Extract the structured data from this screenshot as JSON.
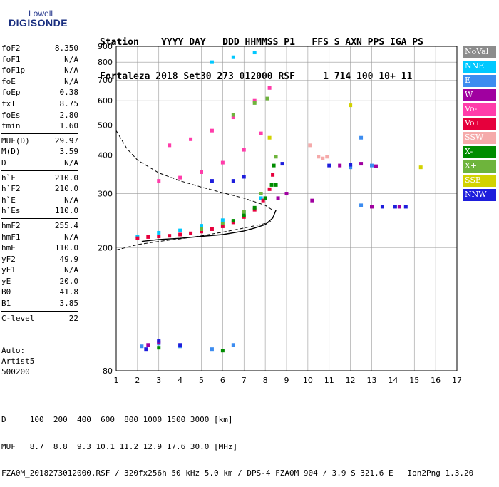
{
  "logo": {
    "line1": "Lowell",
    "line2": "DIGISONDE"
  },
  "header": {
    "labels_line": "Station    YYYY DAY   DDD HHMMSS P1   FFS S AXN PPS IGA PS",
    "values_line": "Fortaleza 2018 Set30 273 012000 RSF     1 714 100 10+ 11"
  },
  "params": [
    [
      [
        "foF2",
        "8.350"
      ],
      [
        "foF1",
        "N/A"
      ],
      [
        "foF1p",
        "N/A"
      ],
      [
        "foE",
        "N/A"
      ],
      [
        "foEp",
        "0.38"
      ],
      [
        "fxI",
        "8.75"
      ],
      [
        "foEs",
        "2.80"
      ],
      [
        "fmin",
        "1.60"
      ]
    ],
    [
      [
        "MUF(D)",
        "29.97"
      ],
      [
        "M(D)",
        "3.59"
      ],
      [
        "D",
        "N/A"
      ]
    ],
    [
      [
        "h`F",
        "210.0"
      ],
      [
        "h`F2",
        "210.0"
      ],
      [
        "h`E",
        "N/A"
      ],
      [
        "h`Es",
        "110.0"
      ]
    ],
    [
      [
        "hmF2",
        "255.4"
      ],
      [
        "hmF1",
        "N/A"
      ],
      [
        "hmE",
        "110.0"
      ],
      [
        "yF2",
        "49.9"
      ],
      [
        "yF1",
        "N/A"
      ],
      [
        "yE",
        "20.0"
      ],
      [
        "B0",
        "41.8"
      ],
      [
        "B1",
        "3.85"
      ]
    ],
    [
      [
        "C-level",
        "22"
      ]
    ]
  ],
  "auto": [
    "Auto:",
    "Artist5",
    "500200"
  ],
  "footer": [
    "D     100  200  400  600  800 1000 1500 3000 [km]",
    "MUF   8.7  8.8  9.3 10.1 11.2 12.9 17.6 30.0 [MHz]",
    "FZA0M_2018273012000.RSF / 320fx256h 50 kHz 5.0 km / DPS-4 FZA0M 904 / 3.9 S 321.6 E   Ion2Png 1.3.20"
  ],
  "legend": [
    {
      "label": "NoVal",
      "color": "#8c8c8c"
    },
    {
      "label": "NNE",
      "color": "#00c8ff"
    },
    {
      "label": "E",
      "color": "#3c8cf0"
    },
    {
      "label": "W",
      "color": "#a000a0"
    },
    {
      "label": "Vo-",
      "color": "#ff3caa"
    },
    {
      "label": "Vo+",
      "color": "#e6003c"
    },
    {
      "label": "SSW",
      "color": "#f5aaaa"
    },
    {
      "label": "X-",
      "color": "#008c00"
    },
    {
      "label": "X+",
      "color": "#6eb43c"
    },
    {
      "label": "SSE",
      "color": "#d2d200"
    },
    {
      "label": "NNW",
      "color": "#1e1edc"
    }
  ],
  "chart_data": {
    "type": "scatter",
    "xlim": [
      1,
      17
    ],
    "ylim": [
      80,
      900
    ],
    "x_ticks": [
      1,
      2,
      3,
      4,
      5,
      6,
      7,
      8,
      9,
      10,
      11,
      12,
      13,
      14,
      15,
      16,
      17
    ],
    "y_ticks": [
      80,
      200,
      300,
      400,
      500,
      600,
      700,
      800,
      900
    ],
    "y_scale": "log",
    "grid": true,
    "series": [
      {
        "name": "NNE",
        "color": "#00c8ff",
        "points": [
          [
            2.0,
            218
          ],
          [
            3.0,
            224
          ],
          [
            4.0,
            228
          ],
          [
            5.0,
            236
          ],
          [
            6.0,
            246
          ],
          [
            7.0,
            262
          ],
          [
            7.8,
            290
          ],
          [
            5.5,
            800
          ],
          [
            6.5,
            830
          ],
          [
            7.5,
            860
          ]
        ]
      },
      {
        "name": "E",
        "color": "#3c8cf0",
        "points": [
          [
            2.2,
            96
          ],
          [
            3.0,
            98
          ],
          [
            4.0,
            96
          ],
          [
            5.5,
            94
          ],
          [
            6.5,
            97
          ],
          [
            12.0,
            365
          ],
          [
            12.5,
            455
          ],
          [
            13.0,
            370
          ],
          [
            12.5,
            275
          ]
        ]
      },
      {
        "name": "W",
        "color": "#a000a0",
        "points": [
          [
            2.5,
            97
          ],
          [
            3.0,
            99
          ],
          [
            8.6,
            290
          ],
          [
            9.0,
            300
          ],
          [
            10.2,
            285
          ],
          [
            11.5,
            370
          ],
          [
            12.5,
            375
          ],
          [
            13.2,
            368
          ],
          [
            13.0,
            272
          ],
          [
            14.3,
            272
          ]
        ]
      },
      {
        "name": "Vo-",
        "color": "#ff3caa",
        "points": [
          [
            3.0,
            330
          ],
          [
            4.0,
            338
          ],
          [
            5.0,
            352
          ],
          [
            6.0,
            378
          ],
          [
            7.0,
            416
          ],
          [
            7.8,
            470
          ],
          [
            3.5,
            430
          ],
          [
            4.5,
            450
          ],
          [
            5.5,
            480
          ],
          [
            6.5,
            530
          ],
          [
            7.5,
            600
          ],
          [
            8.2,
            660
          ]
        ]
      },
      {
        "name": "Vo+",
        "color": "#e6003c",
        "points": [
          [
            2.0,
            215
          ],
          [
            2.5,
            217
          ],
          [
            3.0,
            218
          ],
          [
            3.5,
            219
          ],
          [
            4.0,
            221
          ],
          [
            4.5,
            223
          ],
          [
            5.0,
            226
          ],
          [
            5.5,
            230
          ],
          [
            6.0,
            235
          ],
          [
            6.5,
            242
          ],
          [
            7.0,
            252
          ],
          [
            7.5,
            266
          ],
          [
            7.9,
            285
          ],
          [
            8.2,
            310
          ],
          [
            8.35,
            345
          ]
        ]
      },
      {
        "name": "SSW",
        "color": "#f5aaaa",
        "points": [
          [
            10.1,
            430
          ],
          [
            10.5,
            395
          ],
          [
            10.9,
            395
          ],
          [
            10.7,
            390
          ]
        ]
      },
      {
        "name": "X-",
        "color": "#008c00",
        "points": [
          [
            6.5,
            245
          ],
          [
            7.0,
            255
          ],
          [
            7.5,
            270
          ],
          [
            8.0,
            290
          ],
          [
            8.5,
            320
          ],
          [
            8.3,
            320
          ],
          [
            8.4,
            370
          ],
          [
            3.0,
            95
          ],
          [
            6.0,
            93
          ]
        ]
      },
      {
        "name": "X+",
        "color": "#6eb43c",
        "points": [
          [
            5.0,
            230
          ],
          [
            6.0,
            240
          ],
          [
            7.0,
            262
          ],
          [
            7.8,
            300
          ],
          [
            8.5,
            395
          ],
          [
            6.5,
            540
          ],
          [
            7.5,
            590
          ],
          [
            8.1,
            610
          ]
        ]
      },
      {
        "name": "SSE",
        "color": "#d2d200",
        "points": [
          [
            8.2,
            455
          ],
          [
            15.3,
            365
          ],
          [
            12.0,
            580
          ]
        ]
      },
      {
        "name": "NNW",
        "color": "#1e1edc",
        "points": [
          [
            2.4,
            94
          ],
          [
            3.0,
            100
          ],
          [
            4.0,
            97
          ],
          [
            5.5,
            330
          ],
          [
            6.5,
            330
          ],
          [
            7.0,
            340
          ],
          [
            8.8,
            375
          ],
          [
            11.0,
            370
          ],
          [
            12.0,
            372
          ],
          [
            14.1,
            272
          ],
          [
            14.6,
            272
          ],
          [
            13.5,
            272
          ]
        ]
      }
    ],
    "curves": [
      {
        "name": "",
        "style": "solid",
        "points": [
          [
            2.2,
            210
          ],
          [
            3.0,
            213
          ],
          [
            4.0,
            215
          ],
          [
            5.0,
            218
          ],
          [
            6.0,
            221
          ],
          [
            7.0,
            227
          ],
          [
            7.5,
            232
          ],
          [
            8.0,
            238
          ],
          [
            8.35,
            250
          ],
          [
            8.5,
            265
          ]
        ]
      },
      {
        "name": "",
        "style": "dashed",
        "points": [
          [
            1.0,
            197
          ],
          [
            2.0,
            205
          ],
          [
            3.0,
            210
          ],
          [
            4.0,
            214
          ],
          [
            5.0,
            219
          ],
          [
            6.0,
            225
          ],
          [
            7.0,
            232
          ],
          [
            8.0,
            240
          ],
          [
            8.35,
            245
          ]
        ]
      },
      {
        "name": "",
        "style": "dashed",
        "points": [
          [
            1.0,
            480
          ],
          [
            1.5,
            420
          ],
          [
            2.0,
            385
          ],
          [
            3.0,
            350
          ],
          [
            4.0,
            330
          ],
          [
            5.0,
            315
          ],
          [
            6.0,
            302
          ],
          [
            7.0,
            290
          ],
          [
            8.0,
            275
          ],
          [
            8.35,
            265
          ]
        ]
      }
    ]
  }
}
